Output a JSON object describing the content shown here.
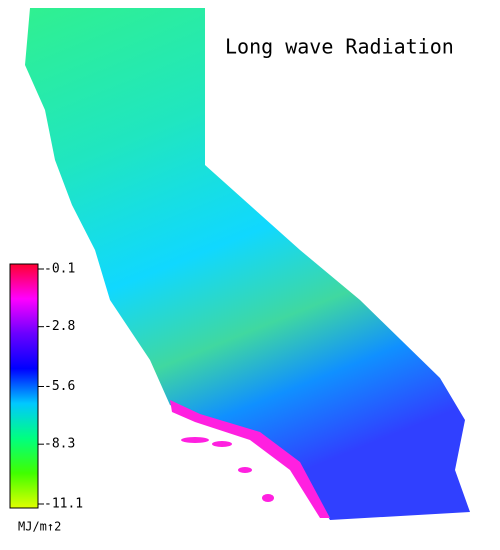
{
  "chart_data": {
    "type": "colormap",
    "title": "Long wave Radiation",
    "colorbar_label": "MJ/m↑2",
    "clim": [
      -0.1,
      -11.1
    ],
    "cticks": [
      -0.1,
      -2.8,
      -5.6,
      -8.3,
      -11.1
    ],
    "colormap": [
      "#ff0030",
      "#ff00ff",
      "#6a00ff",
      "#0000ff",
      "#00c8ff",
      "#00ff80",
      "#40ff00",
      "#e0ff00"
    ]
  }
}
